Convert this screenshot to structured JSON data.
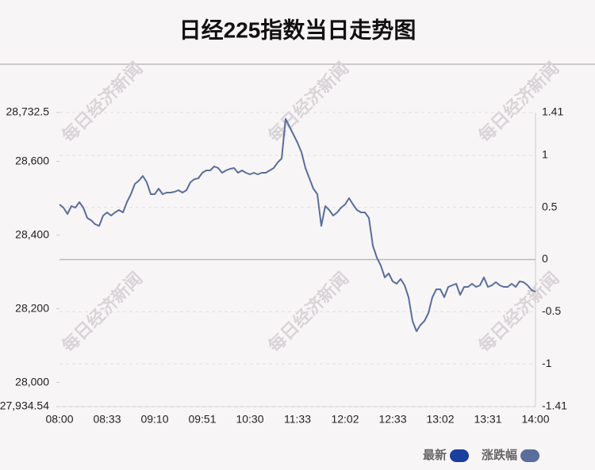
{
  "chart_data": {
    "type": "line",
    "title": "日经225指数当日走势图",
    "watermark": "每日经济新闻",
    "categories": [
      "08:00",
      null,
      null,
      null,
      null,
      null,
      null,
      null,
      null,
      null,
      null,
      null,
      "08:33",
      null,
      null,
      null,
      null,
      null,
      null,
      null,
      null,
      null,
      null,
      null,
      "09:10",
      null,
      null,
      null,
      null,
      null,
      null,
      null,
      null,
      null,
      null,
      null,
      "09:51",
      null,
      null,
      null,
      null,
      null,
      null,
      null,
      null,
      null,
      null,
      null,
      "10:30",
      null,
      null,
      null,
      null,
      null,
      null,
      null,
      null,
      null,
      null,
      null,
      "11:33",
      null,
      null,
      null,
      null,
      null,
      null,
      null,
      null,
      null,
      null,
      null,
      "12:02",
      null,
      null,
      null,
      null,
      null,
      null,
      null,
      null,
      null,
      null,
      null,
      "12:33",
      null,
      null,
      null,
      null,
      null,
      null,
      null,
      null,
      null,
      null,
      null,
      "13:02",
      null,
      null,
      null,
      null,
      null,
      null,
      null,
      null,
      null,
      null,
      null,
      "13:31",
      null,
      null,
      null,
      null,
      null,
      null,
      null,
      null,
      null,
      null,
      null,
      "14:00"
    ],
    "series": [
      {
        "color": "#5a6e9c",
        "values": [
          28483.0,
          28474.4,
          28457.2,
          28478.7,
          28474.4,
          28489.5,
          28474.4,
          28446.4,
          28440.0,
          28429.2,
          28424.9,
          28452.9,
          28461.5,
          28452.9,
          28461.5,
          28467.9,
          28461.5,
          28489.5,
          28510.9,
          28538.9,
          28547.5,
          28560.4,
          28543.2,
          28510.9,
          28510.9,
          28526.0,
          28510.9,
          28515.2,
          28515.2,
          28517.4,
          28521.7,
          28515.2,
          28521.7,
          28543.2,
          28551.8,
          28554.0,
          28569.0,
          28575.5,
          28575.5,
          28586.2,
          28581.9,
          28569.0,
          28575.5,
          28579.8,
          28581.9,
          28569.0,
          28575.5,
          28569.0,
          28564.7,
          28569.0,
          28564.7,
          28569.0,
          28569.0,
          28575.5,
          28581.9,
          28597.0,
          28607.7,
          28715.2,
          28693.7,
          28672.2,
          28650.7,
          28624.9,
          28581.9,
          28554.0,
          28526.0,
          28510.9,
          28424.9,
          28478.7,
          28467.9,
          28452.9,
          28461.5,
          28474.4,
          28483.0,
          28500.2,
          28483.0,
          28467.9,
          28461.5,
          28461.5,
          28446.4,
          28371.1,
          28338.9,
          28317.3,
          28285.1,
          28295.8,
          28274.3,
          28267.9,
          28280.8,
          28263.6,
          28231.3,
          28166.8,
          28138.8,
          28156.0,
          28166.8,
          28188.3,
          28231.3,
          28252.8,
          28252.8,
          28231.3,
          28259.3,
          28263.6,
          28267.9,
          28237.8,
          28259.3,
          28259.3,
          28267.9,
          28259.3,
          28263.6,
          28285.1,
          28259.3,
          28263.6,
          28272.2,
          28263.6,
          28259.3,
          28259.3,
          28267.9,
          28259.3,
          28274.3,
          28272.2,
          28263.6,
          28250.7,
          28246.4
        ]
      }
    ],
    "legend": [
      {
        "name": "最新",
        "color": "#1b3f9e"
      },
      {
        "name": "涨跌幅",
        "color": "#5a6e9c"
      }
    ],
    "ylim": [
      27934.54,
      28732.5
    ],
    "yticks": [
      {
        "value": 28732.5,
        "label": "28,732.5"
      },
      {
        "value": 28600,
        "label": "28,600"
      },
      {
        "value": 28400,
        "label": "28,400"
      },
      {
        "value": 28200,
        "label": "28,200"
      },
      {
        "value": 28000,
        "label": "28,000"
      },
      {
        "value": 27934.54,
        "label": "27,934.54"
      }
    ],
    "y2lim": [
      -1.41,
      1.41
    ],
    "y2ticks": [
      1.41,
      1,
      0.5,
      0,
      -0.5,
      -1,
      -1.41
    ],
    "grid": true
  }
}
